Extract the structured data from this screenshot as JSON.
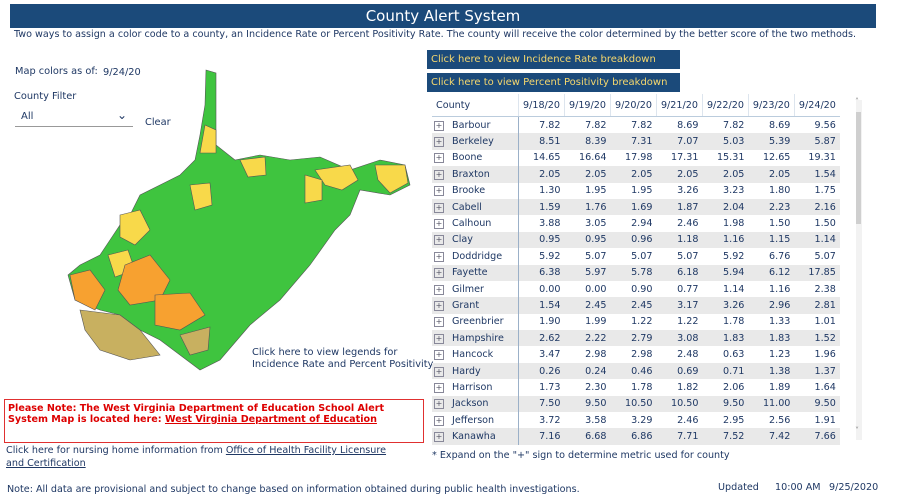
{
  "title": "County Alert System",
  "subtitle": "Two ways to assign a color code to a county, an Incidence Rate or Percent Positivity Rate. The county will receive the color determined by the better score of the two methods.",
  "map_date_label": "Map colors as of:",
  "map_date": "9/24/20",
  "filter_label": "County Filter",
  "filter_value": "All",
  "clear_label": "Clear",
  "btn_incidence": "Click here to view Incidence Rate breakdown",
  "btn_positivity": "Click here to view Percent Positivity breakdown",
  "legend_link": [
    "Click here to view legends for",
    "Incidence Rate and Percent Positivity"
  ],
  "colors": {
    "green": "#3fc43f",
    "yellow": "#f8d94a",
    "orange": "#f7a130",
    "gold": "#c8b060"
  },
  "table": {
    "headers": [
      "County",
      "9/18/20",
      "9/19/20",
      "9/20/20",
      "9/21/20",
      "9/22/20",
      "9/23/20",
      "9/24/20"
    ],
    "rows": [
      [
        "Barbour",
        "7.82",
        "7.82",
        "7.82",
        "8.69",
        "7.82",
        "8.69",
        "9.56"
      ],
      [
        "Berkeley",
        "8.51",
        "8.39",
        "7.31",
        "7.07",
        "5.03",
        "5.39",
        "5.87"
      ],
      [
        "Boone",
        "14.65",
        "16.64",
        "17.98",
        "17.31",
        "15.31",
        "12.65",
        "19.31"
      ],
      [
        "Braxton",
        "2.05",
        "2.05",
        "2.05",
        "2.05",
        "2.05",
        "2.05",
        "1.54"
      ],
      [
        "Brooke",
        "1.30",
        "1.95",
        "1.95",
        "3.26",
        "3.23",
        "1.80",
        "1.75"
      ],
      [
        "Cabell",
        "1.59",
        "1.76",
        "1.69",
        "1.87",
        "2.04",
        "2.23",
        "2.16"
      ],
      [
        "Calhoun",
        "3.88",
        "3.05",
        "2.94",
        "2.46",
        "1.98",
        "1.50",
        "1.50"
      ],
      [
        "Clay",
        "0.95",
        "0.95",
        "0.96",
        "1.18",
        "1.16",
        "1.15",
        "1.14"
      ],
      [
        "Doddridge",
        "5.92",
        "5.07",
        "5.07",
        "5.07",
        "5.92",
        "6.76",
        "5.07"
      ],
      [
        "Fayette",
        "6.38",
        "5.97",
        "5.78",
        "6.18",
        "5.94",
        "6.12",
        "17.85"
      ],
      [
        "Gilmer",
        "0.00",
        "0.00",
        "0.90",
        "0.77",
        "1.14",
        "1.16",
        "2.38"
      ],
      [
        "Grant",
        "1.54",
        "2.45",
        "2.45",
        "3.17",
        "3.26",
        "2.96",
        "2.81"
      ],
      [
        "Greenbrier",
        "1.90",
        "1.99",
        "1.22",
        "1.22",
        "1.78",
        "1.33",
        "1.01"
      ],
      [
        "Hampshire",
        "2.62",
        "2.22",
        "2.79",
        "3.08",
        "1.83",
        "1.83",
        "1.52"
      ],
      [
        "Hancock",
        "3.47",
        "2.98",
        "2.98",
        "2.48",
        "0.63",
        "1.23",
        "1.96"
      ],
      [
        "Hardy",
        "0.26",
        "0.24",
        "0.46",
        "0.69",
        "0.71",
        "1.38",
        "1.37"
      ],
      [
        "Harrison",
        "1.73",
        "2.30",
        "1.78",
        "1.82",
        "2.06",
        "1.89",
        "1.64"
      ],
      [
        "Jackson",
        "7.50",
        "9.50",
        "10.50",
        "10.50",
        "9.50",
        "11.00",
        "9.50"
      ],
      [
        "Jefferson",
        "3.72",
        "3.58",
        "3.29",
        "2.46",
        "2.95",
        "2.56",
        "1.91"
      ],
      [
        "Kanawha",
        "7.16",
        "6.68",
        "6.86",
        "7.71",
        "7.52",
        "7.42",
        "7.66"
      ]
    ]
  },
  "expand_note": "* Expand on the \"+\" sign to determine metric used for county",
  "notice_text": "Please Note: The West Virginia Department of Education School Alert System Map is located here: ",
  "notice_link": "West Virginia Department of Education",
  "nursing_text": "Click here for nursing home information from ",
  "nursing_link": "Office of Health Facility Licensure and Certification",
  "footer_note": "Note: All data are provisional and subject to change based on information obtained during public health investigations.",
  "updated_label": "Updated",
  "updated_time": "10:00 AM",
  "updated_date": "9/25/2020"
}
